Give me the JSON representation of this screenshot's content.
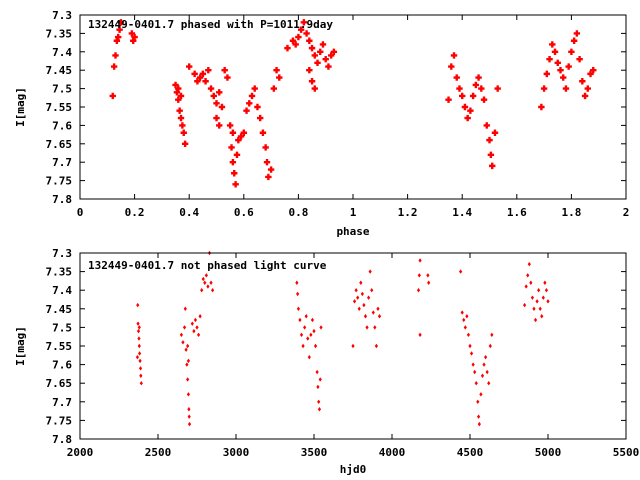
{
  "chart_data": [
    {
      "type": "scatter",
      "title": "132449-0401.7 phased with P=1011.9day",
      "xlabel": "phase",
      "ylabel": "I[mag]",
      "xlim": [
        0,
        2
      ],
      "ylim": [
        7.8,
        7.3
      ],
      "y_inverted": true,
      "grid": false,
      "color": "#ff0000",
      "marker": "cross-filled",
      "x_ticks": [
        0,
        0.2,
        0.4,
        0.6,
        0.8,
        1,
        1.2,
        1.4,
        1.6,
        1.8,
        2
      ],
      "x_tick_labels": [
        "0",
        "0.2",
        "0.4",
        "0.6",
        "0.8",
        "1",
        "1.2",
        "1.4",
        "1.6",
        "1.8",
        "2"
      ],
      "y_ticks": [
        7.3,
        7.35,
        7.4,
        7.45,
        7.5,
        7.55,
        7.6,
        7.65,
        7.7,
        7.75,
        7.8
      ],
      "y_tick_labels": [
        "7.3",
        "7.35",
        "7.4",
        "7.45",
        "7.5",
        "7.55",
        "7.6",
        "7.65",
        "7.7",
        "7.75",
        "7.8"
      ],
      "points": [
        [
          0.12,
          7.52
        ],
        [
          0.125,
          7.44
        ],
        [
          0.13,
          7.41
        ],
        [
          0.135,
          7.37
        ],
        [
          0.14,
          7.36
        ],
        [
          0.145,
          7.34
        ],
        [
          0.15,
          7.32
        ],
        [
          0.19,
          7.35
        ],
        [
          0.195,
          7.37
        ],
        [
          0.2,
          7.36
        ],
        [
          0.35,
          7.49
        ],
        [
          0.355,
          7.51
        ],
        [
          0.36,
          7.53
        ],
        [
          0.365,
          7.56
        ],
        [
          0.37,
          7.58
        ],
        [
          0.375,
          7.6
        ],
        [
          0.38,
          7.62
        ],
        [
          0.385,
          7.65
        ],
        [
          0.36,
          7.5
        ],
        [
          0.37,
          7.52
        ],
        [
          0.4,
          7.44
        ],
        [
          0.42,
          7.46
        ],
        [
          0.43,
          7.48
        ],
        [
          0.44,
          7.47
        ],
        [
          0.45,
          7.46
        ],
        [
          0.46,
          7.48
        ],
        [
          0.47,
          7.45
        ],
        [
          0.48,
          7.5
        ],
        [
          0.49,
          7.52
        ],
        [
          0.5,
          7.54
        ],
        [
          0.51,
          7.51
        ],
        [
          0.52,
          7.55
        ],
        [
          0.5,
          7.58
        ],
        [
          0.51,
          7.6
        ],
        [
          0.53,
          7.45
        ],
        [
          0.54,
          7.47
        ],
        [
          0.55,
          7.6
        ],
        [
          0.56,
          7.62
        ],
        [
          0.555,
          7.66
        ],
        [
          0.56,
          7.7
        ],
        [
          0.565,
          7.73
        ],
        [
          0.57,
          7.76
        ],
        [
          0.575,
          7.68
        ],
        [
          0.58,
          7.64
        ],
        [
          0.59,
          7.63
        ],
        [
          0.6,
          7.62
        ],
        [
          0.61,
          7.56
        ],
        [
          0.62,
          7.54
        ],
        [
          0.63,
          7.52
        ],
        [
          0.64,
          7.5
        ],
        [
          0.65,
          7.55
        ],
        [
          0.66,
          7.58
        ],
        [
          0.67,
          7.62
        ],
        [
          0.68,
          7.66
        ],
        [
          0.685,
          7.7
        ],
        [
          0.69,
          7.74
        ],
        [
          0.7,
          7.72
        ],
        [
          0.71,
          7.5
        ],
        [
          0.72,
          7.45
        ],
        [
          0.73,
          7.47
        ],
        [
          0.76,
          7.39
        ],
        [
          0.78,
          7.37
        ],
        [
          0.79,
          7.38
        ],
        [
          0.8,
          7.36
        ],
        [
          0.81,
          7.34
        ],
        [
          0.82,
          7.32
        ],
        [
          0.83,
          7.35
        ],
        [
          0.84,
          7.37
        ],
        [
          0.85,
          7.39
        ],
        [
          0.86,
          7.41
        ],
        [
          0.87,
          7.43
        ],
        [
          0.88,
          7.4
        ],
        [
          0.89,
          7.38
        ],
        [
          0.9,
          7.42
        ],
        [
          0.91,
          7.44
        ],
        [
          0.92,
          7.41
        ],
        [
          0.93,
          7.4
        ],
        [
          0.84,
          7.45
        ],
        [
          0.85,
          7.48
        ],
        [
          0.86,
          7.5
        ],
        [
          1.35,
          7.53
        ],
        [
          1.36,
          7.44
        ],
        [
          1.37,
          7.41
        ],
        [
          1.38,
          7.47
        ],
        [
          1.39,
          7.5
        ],
        [
          1.4,
          7.52
        ],
        [
          1.41,
          7.55
        ],
        [
          1.42,
          7.58
        ],
        [
          1.43,
          7.56
        ],
        [
          1.44,
          7.52
        ],
        [
          1.45,
          7.49
        ],
        [
          1.46,
          7.47
        ],
        [
          1.47,
          7.5
        ],
        [
          1.48,
          7.53
        ],
        [
          1.49,
          7.6
        ],
        [
          1.5,
          7.64
        ],
        [
          1.505,
          7.68
        ],
        [
          1.51,
          7.71
        ],
        [
          1.52,
          7.62
        ],
        [
          1.53,
          7.5
        ],
        [
          1.69,
          7.55
        ],
        [
          1.7,
          7.5
        ],
        [
          1.71,
          7.46
        ],
        [
          1.72,
          7.42
        ],
        [
          1.73,
          7.38
        ],
        [
          1.74,
          7.4
        ],
        [
          1.75,
          7.43
        ],
        [
          1.76,
          7.45
        ],
        [
          1.77,
          7.47
        ],
        [
          1.78,
          7.5
        ],
        [
          1.79,
          7.44
        ],
        [
          1.8,
          7.4
        ],
        [
          1.81,
          7.37
        ],
        [
          1.82,
          7.35
        ],
        [
          1.83,
          7.42
        ],
        [
          1.84,
          7.48
        ],
        [
          1.85,
          7.52
        ],
        [
          1.86,
          7.5
        ],
        [
          1.87,
          7.46
        ],
        [
          1.88,
          7.45
        ]
      ]
    },
    {
      "type": "scatter",
      "title": "132449-0401.7 not phased light curve",
      "xlabel": "hjd0",
      "ylabel": "I[mag]",
      "xlim": [
        2000,
        5500
      ],
      "ylim": [
        7.8,
        7.3
      ],
      "y_inverted": true,
      "grid": false,
      "color": "#ff0000",
      "marker": "dot",
      "x_ticks": [
        2000,
        2500,
        3000,
        3500,
        4000,
        4500,
        5000,
        5500
      ],
      "x_tick_labels": [
        "2000",
        "2500",
        "3000",
        "3500",
        "4000",
        "4500",
        "5000",
        "5500"
      ],
      "y_ticks": [
        7.3,
        7.35,
        7.4,
        7.45,
        7.5,
        7.55,
        7.6,
        7.65,
        7.7,
        7.75,
        7.8
      ],
      "y_tick_labels": [
        "7.3",
        "7.35",
        "7.4",
        "7.45",
        "7.5",
        "7.55",
        "7.6",
        "7.65",
        "7.7",
        "7.75",
        "7.8"
      ],
      "points": [
        [
          2370,
          7.44
        ],
        [
          2372,
          7.49
        ],
        [
          2375,
          7.51
        ],
        [
          2378,
          7.53
        ],
        [
          2380,
          7.55
        ],
        [
          2382,
          7.57
        ],
        [
          2385,
          7.59
        ],
        [
          2388,
          7.61
        ],
        [
          2390,
          7.63
        ],
        [
          2393,
          7.65
        ],
        [
          2368,
          7.58
        ],
        [
          2380,
          7.5
        ],
        [
          2650,
          7.52
        ],
        [
          2660,
          7.54
        ],
        [
          2670,
          7.5
        ],
        [
          2675,
          7.45
        ],
        [
          2680,
          7.56
        ],
        [
          2685,
          7.6
        ],
        [
          2690,
          7.64
        ],
        [
          2695,
          7.68
        ],
        [
          2698,
          7.72
        ],
        [
          2700,
          7.74
        ],
        [
          2702,
          7.76
        ],
        [
          2690,
          7.55
        ],
        [
          2695,
          7.59
        ],
        [
          2720,
          7.49
        ],
        [
          2730,
          7.51
        ],
        [
          2740,
          7.48
        ],
        [
          2750,
          7.5
        ],
        [
          2760,
          7.52
        ],
        [
          2770,
          7.47
        ],
        [
          2780,
          7.4
        ],
        [
          2790,
          7.37
        ],
        [
          2800,
          7.38
        ],
        [
          2810,
          7.36
        ],
        [
          2820,
          7.39
        ],
        [
          2830,
          7.3
        ],
        [
          2840,
          7.38
        ],
        [
          2850,
          7.4
        ],
        [
          3390,
          7.38
        ],
        [
          3395,
          7.41
        ],
        [
          3400,
          7.45
        ],
        [
          3410,
          7.48
        ],
        [
          3420,
          7.52
        ],
        [
          3430,
          7.55
        ],
        [
          3440,
          7.5
        ],
        [
          3450,
          7.47
        ],
        [
          3460,
          7.53
        ],
        [
          3470,
          7.58
        ],
        [
          3480,
          7.52
        ],
        [
          3490,
          7.48
        ],
        [
          3500,
          7.51
        ],
        [
          3510,
          7.55
        ],
        [
          3520,
          7.62
        ],
        [
          3525,
          7.66
        ],
        [
          3530,
          7.7
        ],
        [
          3535,
          7.72
        ],
        [
          3540,
          7.64
        ],
        [
          3545,
          7.5
        ],
        [
          3750,
          7.55
        ],
        [
          3760,
          7.43
        ],
        [
          3770,
          7.4
        ],
        [
          3780,
          7.42
        ],
        [
          3790,
          7.45
        ],
        [
          3800,
          7.38
        ],
        [
          3810,
          7.41
        ],
        [
          3820,
          7.44
        ],
        [
          3830,
          7.47
        ],
        [
          3840,
          7.5
        ],
        [
          3850,
          7.42
        ],
        [
          3860,
          7.35
        ],
        [
          3870,
          7.4
        ],
        [
          3880,
          7.46
        ],
        [
          3890,
          7.5
        ],
        [
          3900,
          7.55
        ],
        [
          3910,
          7.45
        ],
        [
          3920,
          7.47
        ],
        [
          4170,
          7.4
        ],
        [
          4175,
          7.36
        ],
        [
          4180,
          7.32
        ],
        [
          4180,
          7.52
        ],
        [
          4230,
          7.36
        ],
        [
          4235,
          7.38
        ],
        [
          4440,
          7.35
        ],
        [
          4450,
          7.46
        ],
        [
          4460,
          7.48
        ],
        [
          4470,
          7.5
        ],
        [
          4480,
          7.47
        ],
        [
          4490,
          7.52
        ],
        [
          4500,
          7.55
        ],
        [
          4510,
          7.57
        ],
        [
          4520,
          7.6
        ],
        [
          4530,
          7.62
        ],
        [
          4540,
          7.65
        ],
        [
          4550,
          7.7
        ],
        [
          4555,
          7.74
        ],
        [
          4560,
          7.76
        ],
        [
          4570,
          7.68
        ],
        [
          4580,
          7.63
        ],
        [
          4590,
          7.6
        ],
        [
          4600,
          7.58
        ],
        [
          4610,
          7.62
        ],
        [
          4620,
          7.65
        ],
        [
          4630,
          7.55
        ],
        [
          4640,
          7.52
        ],
        [
          4850,
          7.44
        ],
        [
          4860,
          7.39
        ],
        [
          4870,
          7.36
        ],
        [
          4880,
          7.33
        ],
        [
          4890,
          7.38
        ],
        [
          4900,
          7.42
        ],
        [
          4910,
          7.45
        ],
        [
          4920,
          7.48
        ],
        [
          4930,
          7.43
        ],
        [
          4940,
          7.4
        ],
        [
          4950,
          7.45
        ],
        [
          4960,
          7.47
        ],
        [
          4970,
          7.42
        ],
        [
          4980,
          7.38
        ],
        [
          4990,
          7.4
        ],
        [
          5000,
          7.43
        ]
      ]
    }
  ]
}
